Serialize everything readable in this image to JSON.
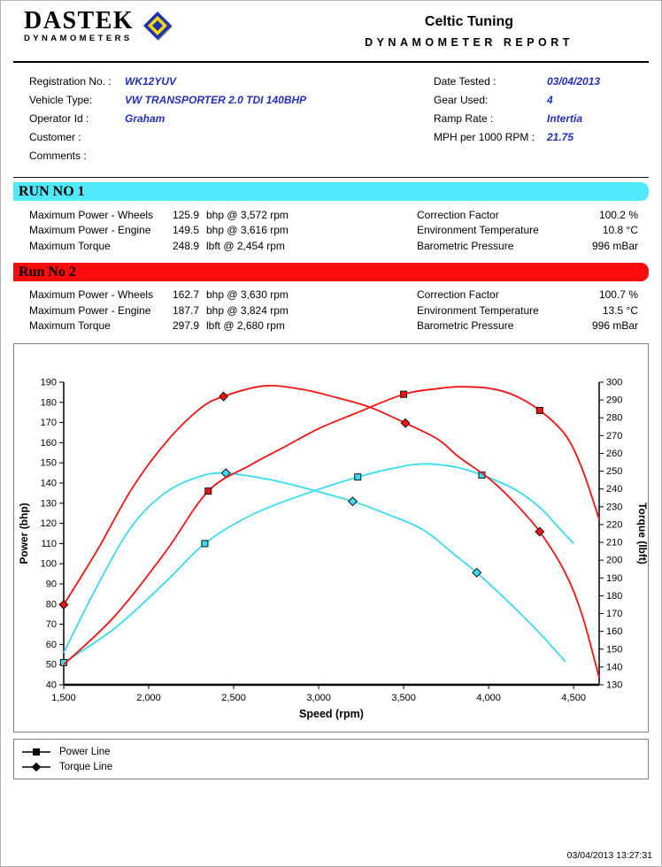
{
  "header": {
    "logo_title": "DASTEK",
    "logo_subtitle": "DYNAMOMETERS",
    "report_title": "Celtic Tuning",
    "report_subtitle": "DYNAMOMETER REPORT"
  },
  "info": {
    "left": [
      {
        "label": "Registration No. :",
        "value": "WK12YUV"
      },
      {
        "label": "Vehicle Type:",
        "value": "VW TRANSPORTER 2.0 TDI 140BHP"
      },
      {
        "label": "Operator Id :",
        "value": "Graham"
      },
      {
        "label": "Customer :",
        "value": ""
      },
      {
        "label": "Comments :",
        "value": ""
      }
    ],
    "right": [
      {
        "label": "Date Tested :",
        "value": "03/04/2013"
      },
      {
        "label": "Gear Used:",
        "value": "4"
      },
      {
        "label": "Ramp Rate :",
        "value": "Intertia"
      },
      {
        "label": "MPH per 1000 RPM :",
        "value": "21.75"
      }
    ]
  },
  "runs": [
    {
      "banner": "RUN NO 1",
      "banner_color": "#4fe9f9",
      "stats": [
        {
          "label": "Maximum Power - Wheels",
          "value": "125.9",
          "unit": "bhp @ 3,572 rpm",
          "right_label": "Correction Factor",
          "right_value": "100.2 %"
        },
        {
          "label": "Maximum Power - Engine",
          "value": "149.5",
          "unit": "bhp @ 3,616 rpm",
          "right_label": "Environment Temperature",
          "right_value": "10.8 °C"
        },
        {
          "label": "Maximum Torque",
          "value": "248.9",
          "unit": "lbft @ 2,454 rpm",
          "right_label": "Barometric Pressure",
          "right_value": "996 mBar"
        }
      ]
    },
    {
      "banner": "Run No 2",
      "banner_color": "#fb0b0b",
      "stats": [
        {
          "label": "Maximum Power - Wheels",
          "value": "162.7",
          "unit": "bhp @ 3,630 rpm",
          "right_label": "Correction Factor",
          "right_value": "100.7 %"
        },
        {
          "label": "Maximum Power - Engine",
          "value": "187.7",
          "unit": "bhp @ 3,824 rpm",
          "right_label": "Environment Temperature",
          "right_value": "13.5 °C"
        },
        {
          "label": "Maximum Torque",
          "value": "297.9",
          "unit": "lbft @ 2,680 rpm",
          "right_label": "Barometric Pressure",
          "right_value": "996 mBar"
        }
      ]
    }
  ],
  "chart_data": {
    "type": "line",
    "xlabel": "Speed (rpm)",
    "ylabel_left": "Power (bhp)",
    "ylabel_right": "Torque (lbft)",
    "x_range": [
      1500,
      4650
    ],
    "x_ticks": [
      1500,
      2000,
      2500,
      3000,
      3500,
      4000,
      4500
    ],
    "y_left_range": [
      40,
      190
    ],
    "y_left_tick_step": 10,
    "y_right_range": [
      130,
      300
    ],
    "y_right_tick_step": 10,
    "grid": false,
    "series": [
      {
        "name": "Run 1 Power",
        "axis": "left",
        "color": "#38dcee",
        "marker": "square",
        "points": [
          [
            1500,
            51
          ],
          [
            1800,
            68
          ],
          [
            2100,
            91
          ],
          [
            2330,
            110
          ],
          [
            2600,
            124
          ],
          [
            2900,
            134
          ],
          [
            3230,
            143
          ],
          [
            3450,
            147.5
          ],
          [
            3616,
            149.5
          ],
          [
            3800,
            148
          ],
          [
            3960,
            144
          ],
          [
            4150,
            137
          ],
          [
            4300,
            128
          ],
          [
            4400,
            119
          ],
          [
            4500,
            110
          ]
        ],
        "marker_points": [
          [
            1500,
            51
          ],
          [
            2330,
            110
          ],
          [
            3230,
            143
          ],
          [
            3960,
            144
          ]
        ]
      },
      {
        "name": "Run 1 Torque",
        "axis": "right",
        "color": "#38dcee",
        "marker": "diamond",
        "points": [
          [
            1500,
            148
          ],
          [
            1700,
            186
          ],
          [
            1900,
            219
          ],
          [
            2100,
            238
          ],
          [
            2300,
            247
          ],
          [
            2454,
            248.9
          ],
          [
            2700,
            245.5
          ],
          [
            2900,
            241
          ],
          [
            3200,
            233
          ],
          [
            3400,
            226
          ],
          [
            3616,
            217
          ],
          [
            3800,
            203
          ],
          [
            3930,
            193
          ],
          [
            4100,
            178
          ],
          [
            4300,
            159
          ],
          [
            4450,
            143
          ]
        ],
        "marker_points": [
          [
            2454,
            248.9
          ],
          [
            3200,
            233
          ],
          [
            3930,
            193
          ]
        ]
      },
      {
        "name": "Run 2 Power",
        "axis": "left",
        "color": "#f21212",
        "marker": "square",
        "points": [
          [
            1500,
            50
          ],
          [
            1800,
            74
          ],
          [
            2100,
            106
          ],
          [
            2350,
            136
          ],
          [
            2600,
            149
          ],
          [
            2800,
            158
          ],
          [
            3000,
            167
          ],
          [
            3200,
            174
          ],
          [
            3500,
            184
          ],
          [
            3700,
            186.8
          ],
          [
            3824,
            187.7
          ],
          [
            4000,
            187
          ],
          [
            4150,
            183.5
          ],
          [
            4300,
            176
          ],
          [
            4450,
            164
          ],
          [
            4550,
            147
          ],
          [
            4650,
            122
          ]
        ],
        "marker_points": [
          [
            2350,
            136
          ],
          [
            3500,
            184
          ],
          [
            4300,
            176
          ]
        ]
      },
      {
        "name": "Run 2 Torque",
        "axis": "right",
        "color": "#f21212",
        "marker": "diamond",
        "points": [
          [
            1500,
            175
          ],
          [
            1700,
            206
          ],
          [
            1900,
            240
          ],
          [
            2100,
            266
          ],
          [
            2300,
            285
          ],
          [
            2440,
            292
          ],
          [
            2680,
            297.9
          ],
          [
            2900,
            296
          ],
          [
            3100,
            291.5
          ],
          [
            3300,
            286
          ],
          [
            3510,
            277
          ],
          [
            3700,
            268
          ],
          [
            3824,
            258
          ],
          [
            4000,
            246
          ],
          [
            4150,
            232.5
          ],
          [
            4300,
            216
          ],
          [
            4450,
            193
          ],
          [
            4550,
            169
          ],
          [
            4650,
            134
          ]
        ],
        "marker_points": [
          [
            1500,
            175
          ],
          [
            2440,
            292
          ],
          [
            3510,
            277
          ],
          [
            4300,
            216
          ]
        ]
      }
    ]
  },
  "legend": [
    {
      "marker": "square",
      "label": "Power Line"
    },
    {
      "marker": "diamond",
      "label": "Torque Line"
    }
  ],
  "footer": {
    "timestamp": "03/04/2013 13:27:31"
  }
}
